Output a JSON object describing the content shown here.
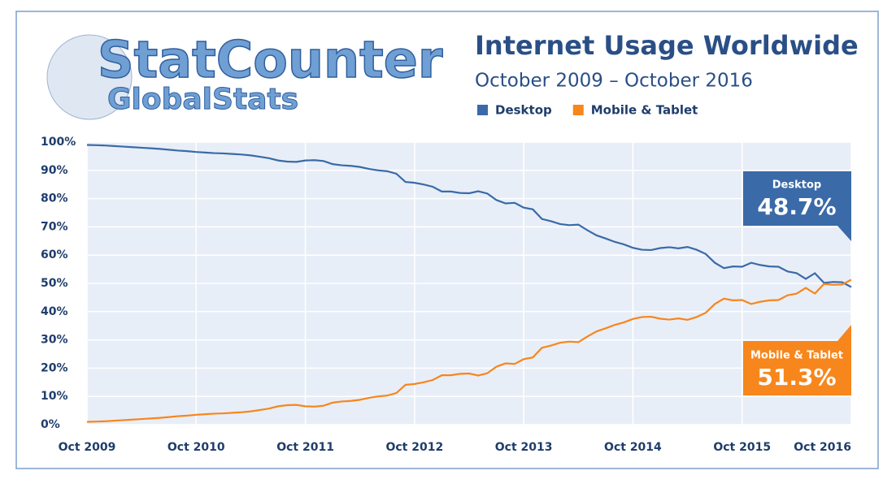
{
  "chart_data": {
    "type": "line",
    "logo": {
      "word1": "StatCounter",
      "word2": "GlobalStats"
    },
    "title": "Internet Usage Worldwide",
    "subtitle": "October 2009 – October 2016",
    "categories": [
      "Oct 2009",
      null,
      null,
      null,
      null,
      null,
      null,
      null,
      null,
      null,
      null,
      null,
      "Oct 2010",
      null,
      null,
      null,
      null,
      null,
      null,
      null,
      null,
      null,
      null,
      null,
      "Oct 2011",
      null,
      null,
      null,
      null,
      null,
      null,
      null,
      null,
      null,
      null,
      null,
      "Oct 2012",
      null,
      null,
      null,
      null,
      null,
      null,
      null,
      null,
      null,
      null,
      null,
      "Oct 2013",
      null,
      null,
      null,
      null,
      null,
      null,
      null,
      null,
      null,
      null,
      null,
      "Oct 2014",
      null,
      null,
      null,
      null,
      null,
      null,
      null,
      null,
      null,
      null,
      null,
      "Oct 2015",
      null,
      null,
      null,
      null,
      null,
      null,
      null,
      null,
      null,
      null,
      null,
      "Oct 2016"
    ],
    "series": [
      {
        "name": "Desktop",
        "color": "#3a6aa8",
        "values": [
          99.0,
          98.9,
          98.8,
          98.6,
          98.4,
          98.2,
          98.0,
          97.8,
          97.6,
          97.3,
          97.0,
          96.8,
          96.5,
          96.3,
          96.1,
          96.0,
          95.8,
          95.6,
          95.3,
          94.8,
          94.3,
          93.5,
          93.1,
          93.0,
          93.5,
          93.6,
          93.3,
          92.2,
          91.8,
          91.6,
          91.2,
          90.5,
          90.0,
          89.7,
          88.8,
          85.9,
          85.6,
          85.0,
          84.2,
          82.5,
          82.5,
          82.0,
          81.9,
          82.6,
          81.8,
          79.5,
          78.3,
          78.5,
          76.8,
          76.2,
          72.8,
          72.0,
          71.0,
          70.6,
          70.8,
          68.8,
          67.0,
          65.9,
          64.7,
          63.8,
          62.6,
          61.9,
          61.8,
          62.5,
          62.8,
          62.4,
          62.9,
          61.9,
          60.4,
          57.3,
          55.4,
          56.0,
          55.9,
          57.3,
          56.5,
          56.0,
          55.9,
          54.2,
          53.6,
          51.6,
          53.6,
          50.2,
          50.5,
          50.4,
          48.7
        ]
      },
      {
        "name": "Mobile & Tablet",
        "color": "#f7861c",
        "values": [
          1.0,
          1.1,
          1.2,
          1.4,
          1.6,
          1.8,
          2.0,
          2.2,
          2.4,
          2.7,
          3.0,
          3.2,
          3.5,
          3.7,
          3.9,
          4.0,
          4.2,
          4.4,
          4.7,
          5.2,
          5.7,
          6.5,
          6.9,
          7.0,
          6.5,
          6.4,
          6.7,
          7.8,
          8.2,
          8.4,
          8.8,
          9.5,
          10.0,
          10.3,
          11.2,
          14.1,
          14.4,
          15.0,
          15.8,
          17.5,
          17.5,
          18.0,
          18.1,
          17.4,
          18.2,
          20.5,
          21.7,
          21.5,
          23.2,
          23.8,
          27.2,
          28.0,
          29.0,
          29.4,
          29.2,
          31.2,
          33.0,
          34.1,
          35.3,
          36.2,
          37.4,
          38.1,
          38.2,
          37.5,
          37.2,
          37.6,
          37.1,
          38.1,
          39.6,
          42.7,
          44.6,
          44.0,
          44.1,
          42.7,
          43.5,
          44.0,
          44.1,
          45.8,
          46.4,
          48.4,
          46.4,
          49.8,
          49.5,
          49.6,
          51.3
        ]
      }
    ],
    "annotations": [
      {
        "title": "Desktop",
        "value": "48.7%",
        "color": "#3a6aa8"
      },
      {
        "title": "Mobile & Tablet",
        "value": "51.3%",
        "color": "#f7861c"
      }
    ],
    "ylim": [
      0,
      100
    ],
    "yticks": [
      {
        "value": 0,
        "label": "0%"
      },
      {
        "value": 10,
        "label": "10%"
      },
      {
        "value": 20,
        "label": "20%"
      },
      {
        "value": 30,
        "label": "30%"
      },
      {
        "value": 40,
        "label": "40%"
      },
      {
        "value": 50,
        "label": "50%"
      },
      {
        "value": 60,
        "label": "60%"
      },
      {
        "value": 70,
        "label": "70%"
      },
      {
        "value": 80,
        "label": "80%"
      },
      {
        "value": 90,
        "label": "90%"
      },
      {
        "value": 100,
        "label": "100%"
      }
    ],
    "grid": true
  }
}
